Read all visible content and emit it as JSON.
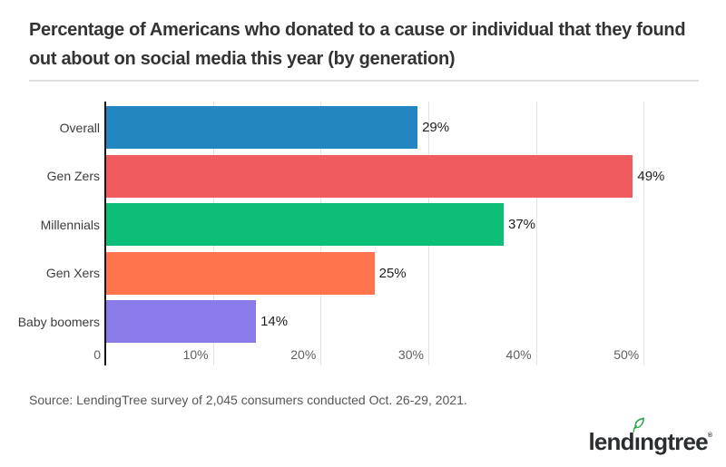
{
  "header": {
    "title": "Percentage of Americans who donated to a cause or individual that they found out about on social media this year (by generation)"
  },
  "chart_data": {
    "type": "bar",
    "orientation": "horizontal",
    "title": "Percentage of Americans who donated to a cause or individual that they found out about on social media this year (by generation)",
    "categories": [
      "Overall",
      "Gen Zers",
      "Millennials",
      "Gen Xers",
      "Baby boomers"
    ],
    "values": [
      29,
      49,
      37,
      25,
      14
    ],
    "value_labels": [
      "29%",
      "49%",
      "37%",
      "25%",
      "14%"
    ],
    "bar_colors": [
      "#2386c1",
      "#f05b5d",
      "#0dbe79",
      "#ff744c",
      "#8a7ce8"
    ],
    "x_ticks": [
      {
        "value": 0,
        "label": "0"
      },
      {
        "value": 10,
        "label": "10%"
      },
      {
        "value": 20,
        "label": "20%"
      },
      {
        "value": 30,
        "label": "30%"
      },
      {
        "value": 40,
        "label": "40%"
      },
      {
        "value": 50,
        "label": "50%"
      }
    ],
    "xlim": [
      0,
      54.7
    ],
    "xlabel": "",
    "ylabel": "",
    "grid": "vertical",
    "legend": "none",
    "style": {
      "gridline_color": "#e3e3e3",
      "axis_line_color": "#141414",
      "value_label_color": "#1f1f1f",
      "category_label_color": "#3d3d3d",
      "tick_label_color": "#5f5f5f"
    }
  },
  "footer": {
    "source": "Source: LendingTree survey of 2,045 consumers conducted Oct. 26-29, 2021.",
    "logo": {
      "text": "lendingtree",
      "prefix": "lend",
      "dotless_i": "ı",
      "suffix": "ngtree",
      "mark": "®",
      "text_color": "#2b2e30",
      "leaf_color": "#2ba84a"
    }
  }
}
